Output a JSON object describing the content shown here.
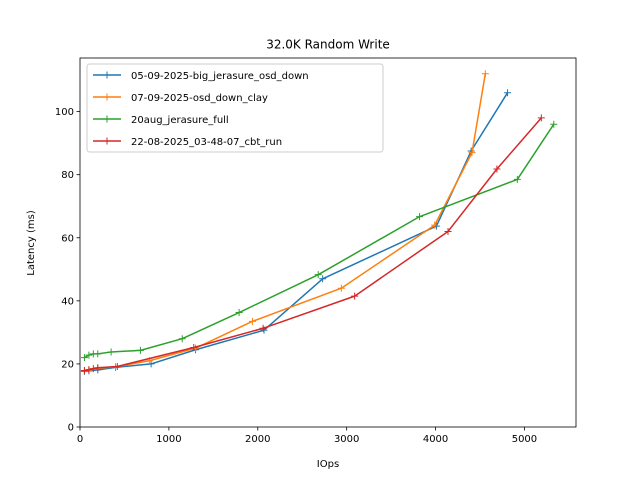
{
  "chart_data": {
    "type": "line",
    "title": "32.0K  Random Write",
    "xlabel": "IOps",
    "ylabel": "Latency (ms)",
    "xlim": [
      0,
      5580
    ],
    "ylim": [
      0,
      117
    ],
    "xticks": [
      0,
      1000,
      2000,
      3000,
      4000,
      5000
    ],
    "yticks": [
      0,
      20,
      40,
      60,
      80,
      100
    ],
    "grid": false,
    "legend_position": "upper-left",
    "marker": "plus",
    "series": [
      {
        "name": "05-09-2025-big_jerasure_osd_down",
        "color": "#1f77b4",
        "points": [
          [
            50,
            17.6
          ],
          [
            100,
            17.8
          ],
          [
            200,
            18.1
          ],
          [
            400,
            18.9
          ],
          [
            800,
            20.0
          ],
          [
            1300,
            24.5
          ],
          [
            2070,
            30.7
          ],
          [
            2730,
            47.0
          ],
          [
            4010,
            63.7
          ],
          [
            4400,
            87.5
          ],
          [
            4810,
            106.0
          ]
        ]
      },
      {
        "name": "07-09-2025-osd_down_clay",
        "color": "#ff7f0e",
        "points": [
          [
            50,
            17.8
          ],
          [
            100,
            18.0
          ],
          [
            200,
            18.6
          ],
          [
            400,
            19.1
          ],
          [
            780,
            21.0
          ],
          [
            1300,
            25.0
          ],
          [
            1940,
            33.5
          ],
          [
            2940,
            44.0
          ],
          [
            3990,
            64.0
          ],
          [
            4410,
            87.0
          ],
          [
            4560,
            112.0
          ]
        ]
      },
      {
        "name": "20aug_jerasure_full",
        "color": "#2ca02c",
        "points": [
          [
            50,
            22.0
          ],
          [
            100,
            22.8
          ],
          [
            150,
            23.2
          ],
          [
            200,
            23.2
          ],
          [
            350,
            23.8
          ],
          [
            680,
            24.3
          ],
          [
            1150,
            28.0
          ],
          [
            1790,
            36.3
          ],
          [
            2680,
            48.3
          ],
          [
            3820,
            66.7
          ],
          [
            4920,
            78.5
          ],
          [
            5330,
            96.0
          ]
        ]
      },
      {
        "name": "22-08-2025_03-48-07_cbt_run",
        "color": "#d62728",
        "points": [
          [
            50,
            17.9
          ],
          [
            100,
            18.2
          ],
          [
            150,
            18.5
          ],
          [
            200,
            18.8
          ],
          [
            420,
            19.2
          ],
          [
            1280,
            25.2
          ],
          [
            2060,
            31.3
          ],
          [
            3090,
            41.5
          ],
          [
            4140,
            62.0
          ],
          [
            4690,
            81.8
          ],
          [
            5190,
            98.0
          ]
        ]
      }
    ]
  }
}
